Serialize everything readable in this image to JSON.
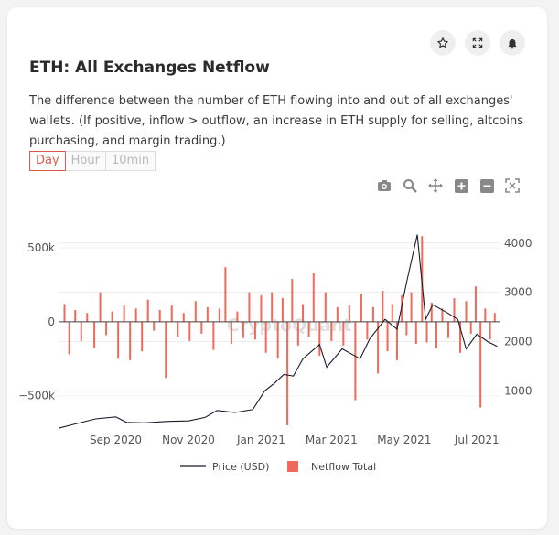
{
  "card": {
    "title": "ETH: All Exchanges Netflow",
    "description": "The difference between the number of ETH flowing into and out of all exchanges' wallets. (If positive, inflow > outflow, an increase in ETH supply for selling, altcoins purchasing, and margin trading.)",
    "tabs": [
      {
        "label": "Day",
        "active": true
      },
      {
        "label": "Hour",
        "active": false
      },
      {
        "label": "10min",
        "active": false
      }
    ]
  },
  "header_icons": [
    "star-icon",
    "expand-icon",
    "bell-icon"
  ],
  "toolbar_icons": [
    "camera-icon",
    "zoom-icon",
    "pan-icon",
    "zoom-in-icon",
    "zoom-out-icon",
    "autoscale-icon"
  ],
  "watermark": "CryptoQuant",
  "colors": {
    "netflow": "#ef6a5a",
    "price": "#1b1b2e",
    "active_tab": "#e0584b"
  },
  "chart_data": {
    "type": "bar+line",
    "x_range": [
      "2020-07-15",
      "2021-07-20"
    ],
    "x_ticks": [
      "Sep 2020",
      "Nov 2020",
      "Jan 2021",
      "Mar 2021",
      "May 2021",
      "Jul 2021"
    ],
    "y_left": {
      "range": [
        -700000,
        600000
      ],
      "ticks": [
        -500000,
        0,
        500000
      ],
      "tick_labels": [
        "−500k",
        "0",
        "500k"
      ]
    },
    "y_right": {
      "range": [
        300,
        4200
      ],
      "ticks": [
        1000,
        2000,
        3000,
        4000
      ],
      "tick_labels": [
        "1000",
        "2000",
        "3000",
        "4000"
      ]
    },
    "legend": {
      "position": "bottom-center"
    },
    "series": [
      {
        "name": "Netflow Total",
        "type": "bar",
        "axis": "left",
        "points": [
          [
            "2020-07-20",
            120000
          ],
          [
            "2020-07-24",
            -220000
          ],
          [
            "2020-07-29",
            80000
          ],
          [
            "2020-08-03",
            -130000
          ],
          [
            "2020-08-08",
            60000
          ],
          [
            "2020-08-14",
            -180000
          ],
          [
            "2020-08-19",
            200000
          ],
          [
            "2020-08-24",
            -90000
          ],
          [
            "2020-08-29",
            70000
          ],
          [
            "2020-09-03",
            -250000
          ],
          [
            "2020-09-08",
            110000
          ],
          [
            "2020-09-13",
            -260000
          ],
          [
            "2020-09-18",
            90000
          ],
          [
            "2020-09-23",
            -200000
          ],
          [
            "2020-09-28",
            150000
          ],
          [
            "2020-10-03",
            -60000
          ],
          [
            "2020-10-08",
            80000
          ],
          [
            "2020-10-13",
            -380000
          ],
          [
            "2020-10-18",
            110000
          ],
          [
            "2020-10-23",
            -100000
          ],
          [
            "2020-10-28",
            60000
          ],
          [
            "2020-11-02",
            -130000
          ],
          [
            "2020-11-07",
            140000
          ],
          [
            "2020-11-12",
            -80000
          ],
          [
            "2020-11-17",
            100000
          ],
          [
            "2020-11-22",
            -190000
          ],
          [
            "2020-11-27",
            90000
          ],
          [
            "2020-12-02",
            370000
          ],
          [
            "2020-12-07",
            -150000
          ],
          [
            "2020-12-12",
            70000
          ],
          [
            "2020-12-17",
            -110000
          ],
          [
            "2020-12-22",
            200000
          ],
          [
            "2020-12-27",
            -120000
          ],
          [
            "2021-01-01",
            180000
          ],
          [
            "2021-01-05",
            -210000
          ],
          [
            "2021-01-10",
            200000
          ],
          [
            "2021-01-15",
            -250000
          ],
          [
            "2021-01-19",
            160000
          ],
          [
            "2021-01-23",
            -700000
          ],
          [
            "2021-01-27",
            290000
          ],
          [
            "2021-02-01",
            -160000
          ],
          [
            "2021-02-05",
            120000
          ],
          [
            "2021-02-10",
            -100000
          ],
          [
            "2021-02-14",
            330000
          ],
          [
            "2021-02-19",
            -230000
          ],
          [
            "2021-02-24",
            200000
          ],
          [
            "2021-03-01",
            -130000
          ],
          [
            "2021-03-06",
            100000
          ],
          [
            "2021-03-11",
            -160000
          ],
          [
            "2021-03-16",
            110000
          ],
          [
            "2021-03-21",
            -530000
          ],
          [
            "2021-03-26",
            190000
          ],
          [
            "2021-03-31",
            -120000
          ],
          [
            "2021-04-05",
            100000
          ],
          [
            "2021-04-09",
            -350000
          ],
          [
            "2021-04-13",
            210000
          ],
          [
            "2021-04-17",
            -200000
          ],
          [
            "2021-04-21",
            120000
          ],
          [
            "2021-04-25",
            -260000
          ],
          [
            "2021-04-29",
            180000
          ],
          [
            "2021-05-03",
            -90000
          ],
          [
            "2021-05-07",
            200000
          ],
          [
            "2021-05-11",
            -150000
          ],
          [
            "2021-05-16",
            580000
          ],
          [
            "2021-05-20",
            -140000
          ],
          [
            "2021-05-24",
            130000
          ],
          [
            "2021-05-28",
            -180000
          ],
          [
            "2021-06-02",
            90000
          ],
          [
            "2021-06-07",
            -110000
          ],
          [
            "2021-06-12",
            160000
          ],
          [
            "2021-06-17",
            -210000
          ],
          [
            "2021-06-22",
            140000
          ],
          [
            "2021-06-26",
            -80000
          ],
          [
            "2021-06-30",
            240000
          ],
          [
            "2021-07-04",
            -580000
          ],
          [
            "2021-07-08",
            90000
          ],
          [
            "2021-07-12",
            -120000
          ],
          [
            "2021-07-16",
            60000
          ]
        ]
      },
      {
        "name": "Price (USD)",
        "type": "line",
        "axis": "right",
        "points": [
          [
            "2020-07-15",
            240
          ],
          [
            "2020-07-28",
            320
          ],
          [
            "2020-08-15",
            430
          ],
          [
            "2020-09-01",
            470
          ],
          [
            "2020-09-10",
            360
          ],
          [
            "2020-09-25",
            350
          ],
          [
            "2020-10-15",
            380
          ],
          [
            "2020-11-01",
            390
          ],
          [
            "2020-11-15",
            460
          ],
          [
            "2020-11-25",
            600
          ],
          [
            "2020-12-10",
            560
          ],
          [
            "2020-12-25",
            620
          ],
          [
            "2021-01-04",
            1000
          ],
          [
            "2021-01-12",
            1150
          ],
          [
            "2021-01-20",
            1330
          ],
          [
            "2021-01-28",
            1300
          ],
          [
            "2021-02-05",
            1650
          ],
          [
            "2021-02-19",
            1940
          ],
          [
            "2021-02-25",
            1480
          ],
          [
            "2021-03-10",
            1850
          ],
          [
            "2021-03-25",
            1650
          ],
          [
            "2021-04-02",
            2050
          ],
          [
            "2021-04-15",
            2450
          ],
          [
            "2021-04-25",
            2250
          ],
          [
            "2021-05-03",
            3200
          ],
          [
            "2021-05-12",
            4170
          ],
          [
            "2021-05-19",
            2450
          ],
          [
            "2021-05-25",
            2750
          ],
          [
            "2021-06-05",
            2600
          ],
          [
            "2021-06-15",
            2450
          ],
          [
            "2021-06-22",
            1850
          ],
          [
            "2021-07-01",
            2150
          ],
          [
            "2021-07-10",
            2000
          ],
          [
            "2021-07-18",
            1900
          ]
        ]
      }
    ]
  }
}
